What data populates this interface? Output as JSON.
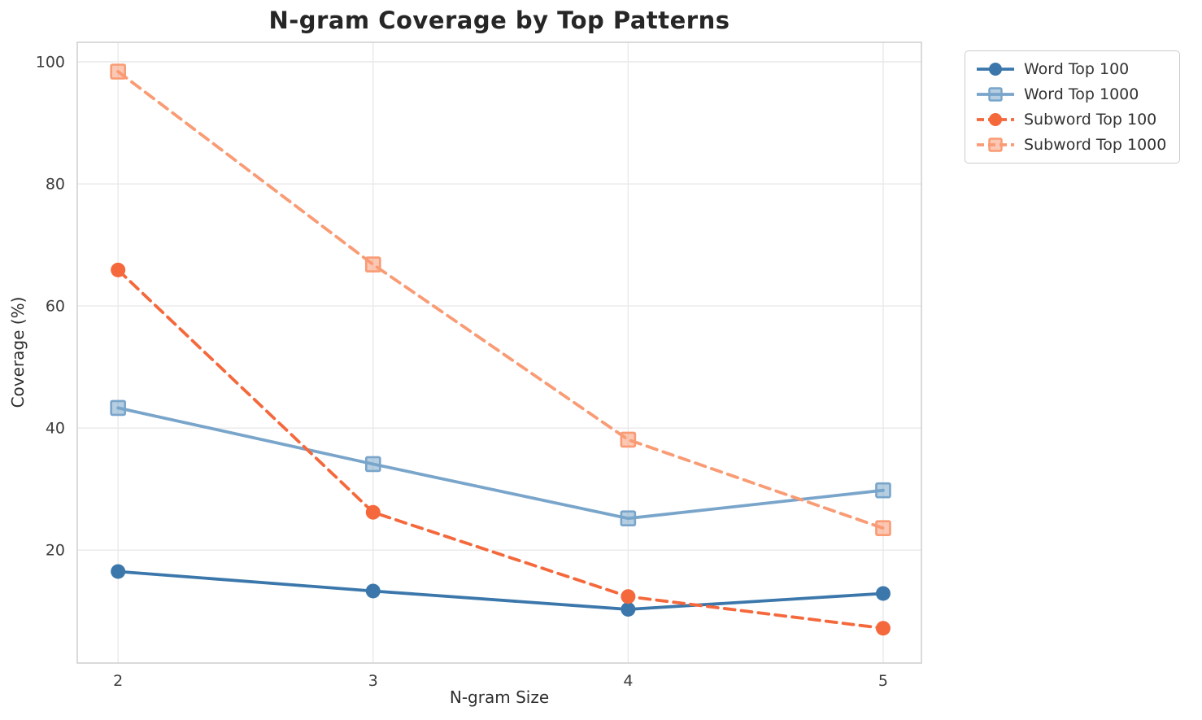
{
  "chart_data": {
    "type": "line",
    "title": "N-gram Coverage by Top Patterns",
    "xlabel": "N-gram Size",
    "ylabel": "Coverage (%)",
    "x": [
      2,
      3,
      4,
      5
    ],
    "xticks": [
      "2",
      "3",
      "4",
      "5"
    ],
    "yticks": [
      "20",
      "40",
      "60",
      "80",
      "100"
    ],
    "ytick_values": [
      20,
      40,
      60,
      80,
      100
    ],
    "xlim": [
      1.84,
      5.15
    ],
    "ylim": [
      1.5,
      103.2
    ],
    "grid": true,
    "legend_position": "outside-top-right",
    "series": [
      {
        "name": "Word Top 100",
        "values": [
          16.5,
          13.3,
          10.3,
          12.9
        ],
        "color": "#3b77ab",
        "linestyle": "solid",
        "marker": "circle"
      },
      {
        "name": "Word Top 1000",
        "values": [
          43.3,
          34.1,
          25.2,
          29.8
        ],
        "color": "#79a5cb",
        "linestyle": "solid",
        "marker": "square"
      },
      {
        "name": "Subword Top 100",
        "values": [
          65.9,
          26.2,
          12.4,
          7.2
        ],
        "color": "#f4683c",
        "linestyle": "dashed",
        "marker": "circle"
      },
      {
        "name": "Subword Top 1000",
        "values": [
          98.4,
          66.8,
          38.1,
          23.6
        ],
        "color": "#f99b74",
        "linestyle": "dashed",
        "marker": "square"
      }
    ],
    "colors": {
      "grid": "#e9e9e9",
      "spine": "#d0d0d0",
      "tick_text": "#3d3d3d",
      "title_text": "#262626"
    }
  }
}
